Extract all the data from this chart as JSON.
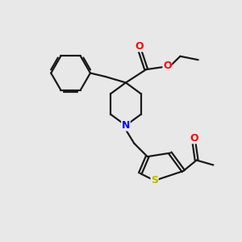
{
  "bg_color": "#e8e8e8",
  "bond_color": "#1a1a1a",
  "O_color": "#ff0000",
  "N_color": "#0000ff",
  "S_color": "#b8b800",
  "line_width": 1.6,
  "fig_size": [
    3.0,
    3.0
  ],
  "dpi": 100,
  "xlim": [
    0,
    10
  ],
  "ylim": [
    0,
    10
  ]
}
